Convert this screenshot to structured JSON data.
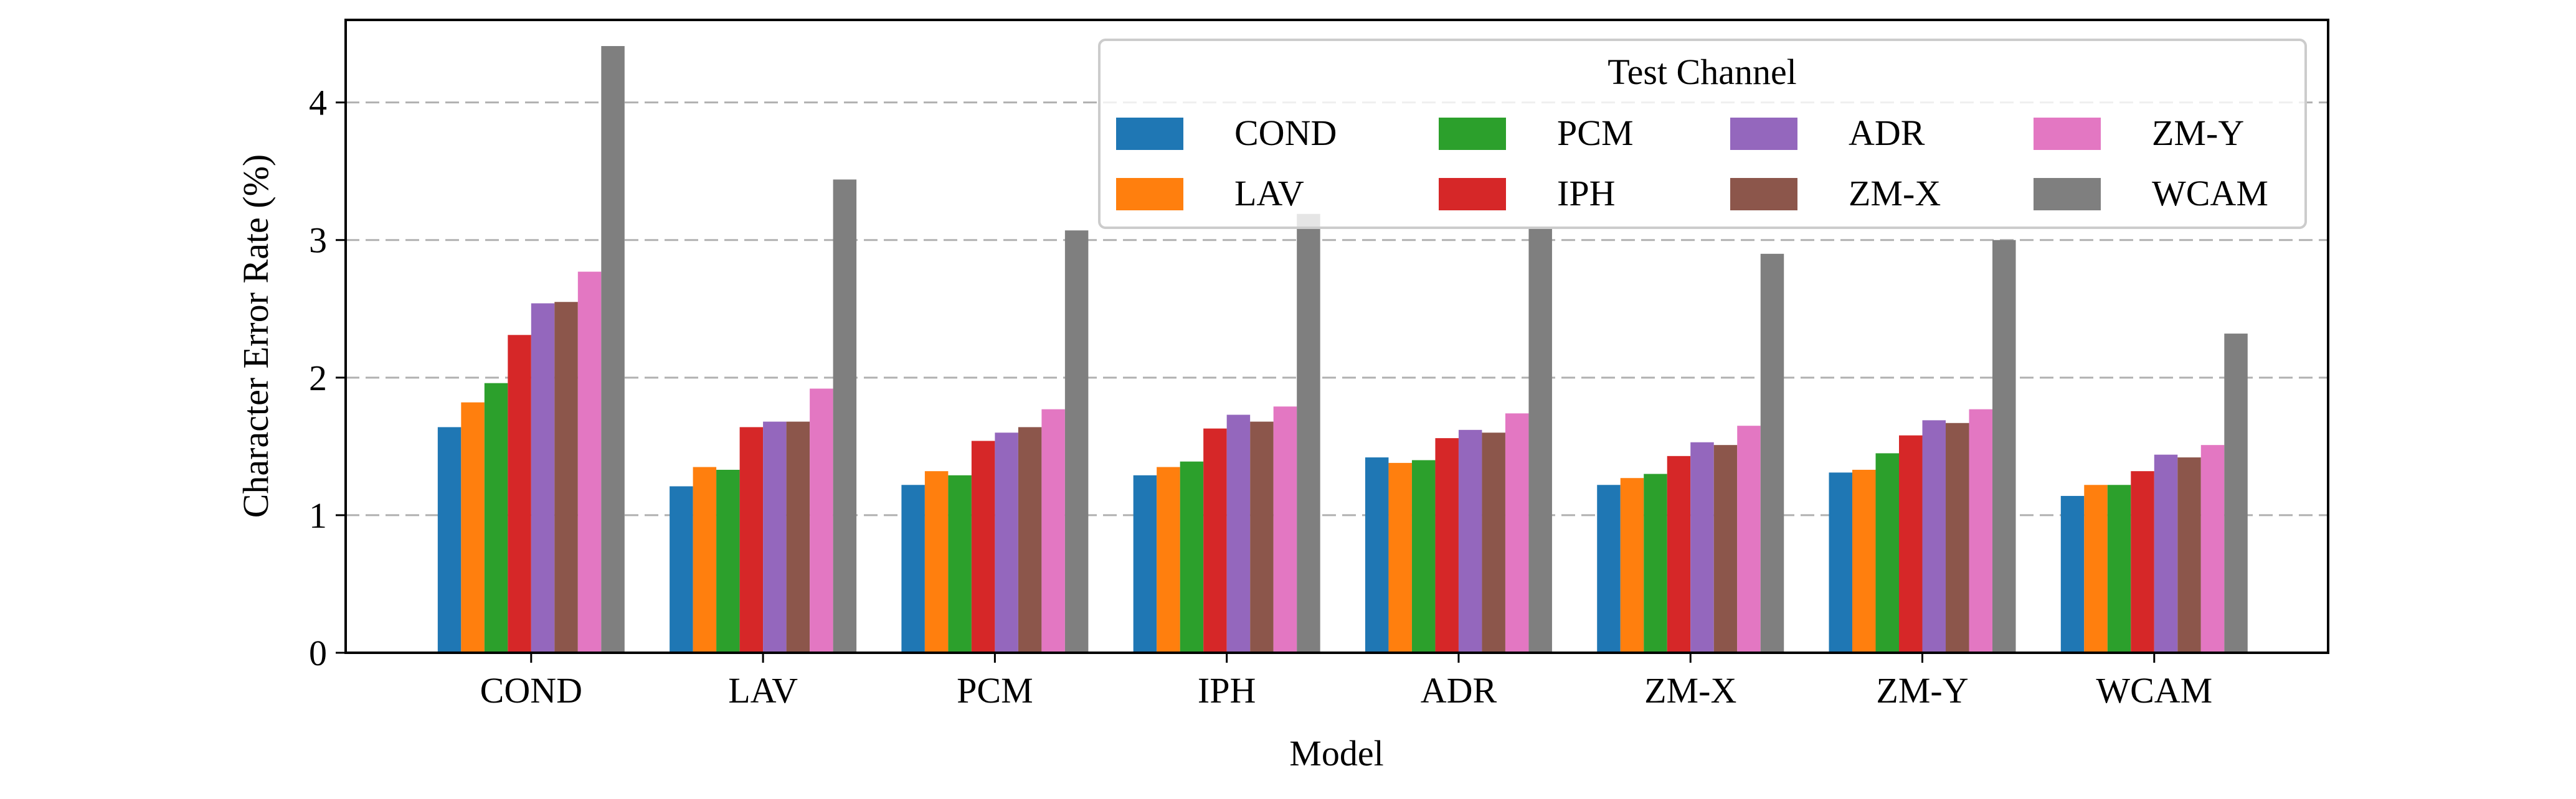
{
  "chart_data": {
    "type": "bar",
    "title": "",
    "xlabel": "Model",
    "ylabel": "Character Error Rate (%)",
    "ylim": [
      0,
      4.6
    ],
    "yticks": [
      0,
      1,
      2,
      3,
      4
    ],
    "grid": "y-dashed",
    "legend": {
      "title": "Test Channel",
      "placement": "top-right",
      "columns": 4
    },
    "categories": [
      "COND",
      "LAV",
      "PCM",
      "IPH",
      "ADR",
      "ZM-X",
      "ZM-Y",
      "WCAM"
    ],
    "series": [
      {
        "name": "COND",
        "color": "#1f77b4",
        "values": [
          1.64,
          1.21,
          1.22,
          1.29,
          1.42,
          1.22,
          1.31,
          1.14
        ]
      },
      {
        "name": "LAV",
        "color": "#ff7f0e",
        "values": [
          1.82,
          1.35,
          1.32,
          1.35,
          1.38,
          1.27,
          1.33,
          1.22
        ]
      },
      {
        "name": "PCM",
        "color": "#2ca02c",
        "values": [
          1.96,
          1.33,
          1.29,
          1.39,
          1.4,
          1.3,
          1.45,
          1.22
        ]
      },
      {
        "name": "IPH",
        "color": "#d62728",
        "values": [
          2.31,
          1.64,
          1.54,
          1.63,
          1.56,
          1.43,
          1.58,
          1.32
        ]
      },
      {
        "name": "ADR",
        "color": "#9467bd",
        "values": [
          2.54,
          1.68,
          1.6,
          1.73,
          1.62,
          1.53,
          1.69,
          1.44
        ]
      },
      {
        "name": "ZM-X",
        "color": "#8c564b",
        "values": [
          2.55,
          1.68,
          1.64,
          1.68,
          1.6,
          1.51,
          1.67,
          1.42
        ]
      },
      {
        "name": "ZM-Y",
        "color": "#e377c2",
        "values": [
          2.77,
          1.92,
          1.77,
          1.79,
          1.74,
          1.65,
          1.77,
          1.51
        ]
      },
      {
        "name": "WCAM",
        "color": "#7f7f7f",
        "values": [
          4.41,
          3.44,
          3.07,
          3.19,
          3.09,
          2.9,
          3.0,
          2.32
        ]
      }
    ]
  }
}
